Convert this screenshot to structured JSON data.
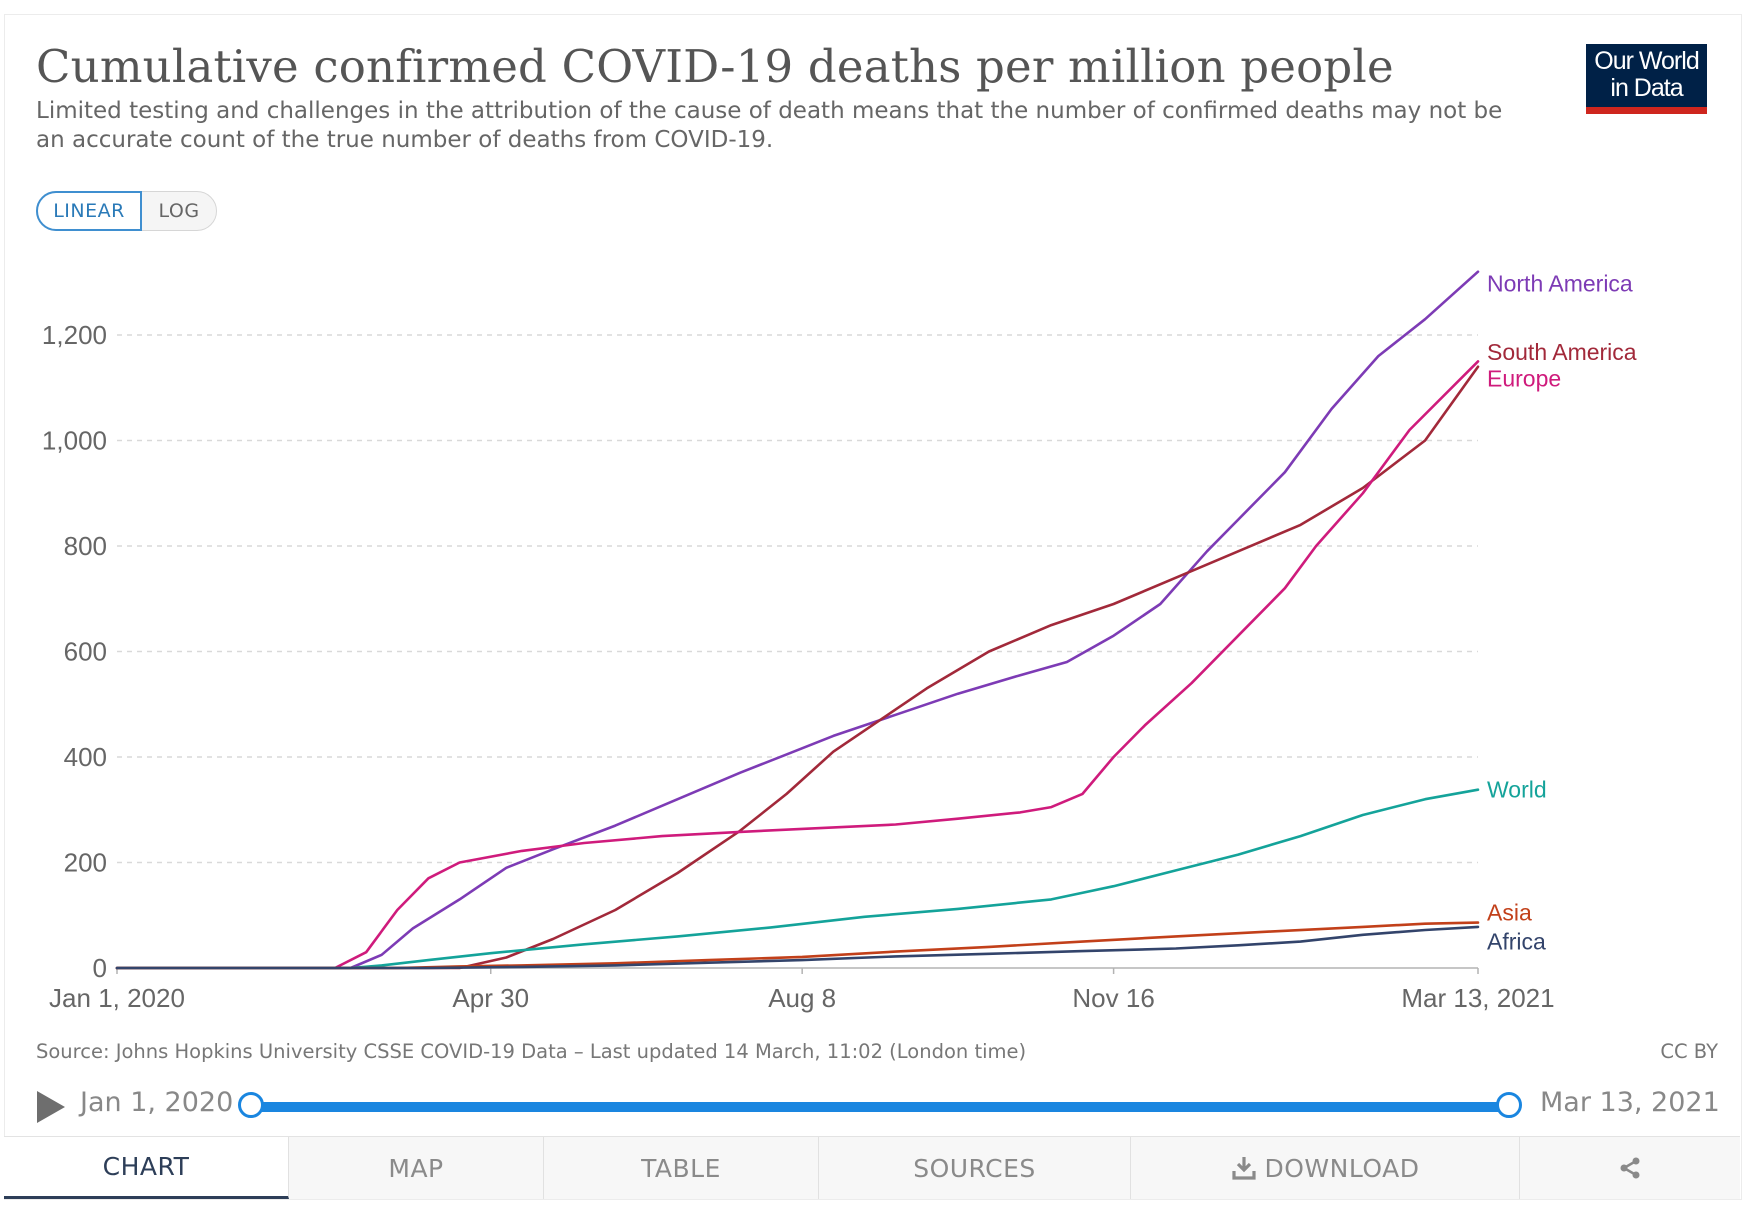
{
  "title": "Cumulative confirmed COVID-19 deaths per million people",
  "subtitle": "Limited testing and challenges in the attribution of the cause of death means that the number of confirmed deaths may not be an accurate count of the true number of deaths from COVID-19.",
  "logo": {
    "line1": "Our World",
    "line2": "in Data"
  },
  "scale_toggle": {
    "linear": "LINEAR",
    "log": "LOG",
    "selected": "LINEAR"
  },
  "source": "Source: Johns Hopkins University CSSE COVID-19 Data – Last updated 14 March, 11:02 (London time)",
  "license": "CC BY",
  "timeline": {
    "start": "Jan 1, 2020",
    "end": "Mar 13, 2021"
  },
  "tabs": {
    "chart": "CHART",
    "map": "MAP",
    "table": "TABLE",
    "sources": "SOURCES",
    "download": "DOWNLOAD"
  },
  "colors": {
    "north_america": "#7d3bb5",
    "south_america": "#a2293a",
    "europe": "#cf1b7c",
    "world": "#14a39a",
    "asia": "#c2401a",
    "africa": "#33446b",
    "grid": "#d9d9d9",
    "axis_text": "#666666",
    "accent": "#1a86e0"
  },
  "chart_data": {
    "type": "line",
    "title": "Cumulative confirmed COVID-19 deaths per million people",
    "xlabel": "",
    "ylabel": "",
    "x_domain_days": [
      0,
      437
    ],
    "ylim": [
      0,
      1300
    ],
    "y_ticks": [
      0,
      200,
      400,
      600,
      800,
      1000,
      1200
    ],
    "y_tick_labels": [
      "0",
      "200",
      "400",
      "600",
      "800",
      "1,000",
      "1,200"
    ],
    "x_ticks": [
      {
        "day": 0,
        "label": "Jan 1, 2020"
      },
      {
        "day": 120,
        "label": "Apr 30"
      },
      {
        "day": 220,
        "label": "Aug 8"
      },
      {
        "day": 320,
        "label": "Nov 16"
      },
      {
        "day": 437,
        "label": "Mar 13, 2021"
      }
    ],
    "grid": true,
    "series": [
      {
        "name": "North America",
        "color_key": "north_america",
        "points": [
          [
            0,
            0
          ],
          [
            75,
            0
          ],
          [
            85,
            25
          ],
          [
            95,
            75
          ],
          [
            110,
            130
          ],
          [
            125,
            190
          ],
          [
            140,
            225
          ],
          [
            160,
            270
          ],
          [
            180,
            320
          ],
          [
            200,
            370
          ],
          [
            215,
            405
          ],
          [
            230,
            440
          ],
          [
            250,
            480
          ],
          [
            270,
            520
          ],
          [
            290,
            555
          ],
          [
            305,
            580
          ],
          [
            320,
            630
          ],
          [
            335,
            690
          ],
          [
            350,
            790
          ],
          [
            360,
            850
          ],
          [
            375,
            940
          ],
          [
            390,
            1060
          ],
          [
            405,
            1160
          ],
          [
            420,
            1230
          ],
          [
            437,
            1320
          ]
        ]
      },
      {
        "name": "South America",
        "color_key": "south_america",
        "points": [
          [
            0,
            0
          ],
          [
            110,
            0
          ],
          [
            125,
            20
          ],
          [
            140,
            55
          ],
          [
            160,
            110
          ],
          [
            180,
            180
          ],
          [
            200,
            260
          ],
          [
            215,
            330
          ],
          [
            230,
            410
          ],
          [
            245,
            470
          ],
          [
            260,
            530
          ],
          [
            280,
            600
          ],
          [
            300,
            650
          ],
          [
            320,
            690
          ],
          [
            340,
            740
          ],
          [
            360,
            790
          ],
          [
            380,
            840
          ],
          [
            400,
            910
          ],
          [
            420,
            1000
          ],
          [
            437,
            1140
          ]
        ]
      },
      {
        "name": "Europe",
        "color_key": "europe",
        "points": [
          [
            0,
            0
          ],
          [
            70,
            0
          ],
          [
            80,
            30
          ],
          [
            90,
            110
          ],
          [
            100,
            170
          ],
          [
            110,
            200
          ],
          [
            130,
            222
          ],
          [
            150,
            237
          ],
          [
            175,
            250
          ],
          [
            200,
            258
          ],
          [
            225,
            265
          ],
          [
            250,
            272
          ],
          [
            270,
            283
          ],
          [
            290,
            295
          ],
          [
            300,
            305
          ],
          [
            310,
            330
          ],
          [
            320,
            400
          ],
          [
            330,
            460
          ],
          [
            345,
            540
          ],
          [
            360,
            630
          ],
          [
            375,
            720
          ],
          [
            385,
            800
          ],
          [
            400,
            900
          ],
          [
            415,
            1020
          ],
          [
            437,
            1150
          ]
        ]
      },
      {
        "name": "World",
        "color_key": "world",
        "points": [
          [
            0,
            0
          ],
          [
            75,
            0
          ],
          [
            85,
            5
          ],
          [
            100,
            15
          ],
          [
            120,
            28
          ],
          [
            150,
            45
          ],
          [
            180,
            60
          ],
          [
            210,
            77
          ],
          [
            240,
            97
          ],
          [
            270,
            112
          ],
          [
            300,
            130
          ],
          [
            320,
            155
          ],
          [
            340,
            185
          ],
          [
            360,
            215
          ],
          [
            380,
            250
          ],
          [
            400,
            290
          ],
          [
            420,
            320
          ],
          [
            437,
            338
          ]
        ]
      },
      {
        "name": "Asia",
        "color_key": "asia",
        "points": [
          [
            0,
            0
          ],
          [
            90,
            0
          ],
          [
            110,
            3
          ],
          [
            130,
            5
          ],
          [
            160,
            9
          ],
          [
            190,
            15
          ],
          [
            220,
            21
          ],
          [
            250,
            31
          ],
          [
            280,
            40
          ],
          [
            310,
            50
          ],
          [
            340,
            60
          ],
          [
            370,
            69
          ],
          [
            400,
            78
          ],
          [
            420,
            84
          ],
          [
            437,
            86
          ]
        ]
      },
      {
        "name": "Africa",
        "color_key": "africa",
        "points": [
          [
            0,
            0
          ],
          [
            100,
            0
          ],
          [
            130,
            2
          ],
          [
            160,
            5
          ],
          [
            190,
            10
          ],
          [
            220,
            15
          ],
          [
            250,
            22
          ],
          [
            280,
            27
          ],
          [
            310,
            32
          ],
          [
            340,
            37
          ],
          [
            360,
            43
          ],
          [
            380,
            50
          ],
          [
            400,
            63
          ],
          [
            420,
            72
          ],
          [
            437,
            78
          ]
        ]
      }
    ],
    "end_labels": [
      {
        "name": "North America",
        "color_key": "north_america",
        "anchor_value": 1298
      },
      {
        "name": "South America",
        "color_key": "south_america",
        "anchor_value": 1168
      },
      {
        "name": "Europe",
        "color_key": "europe",
        "anchor_value": 1118
      },
      {
        "name": "World",
        "color_key": "world",
        "anchor_value": 338
      },
      {
        "name": "Asia",
        "color_key": "asia",
        "anchor_value": 105
      },
      {
        "name": "Africa",
        "color_key": "africa",
        "anchor_value": 50
      }
    ]
  }
}
